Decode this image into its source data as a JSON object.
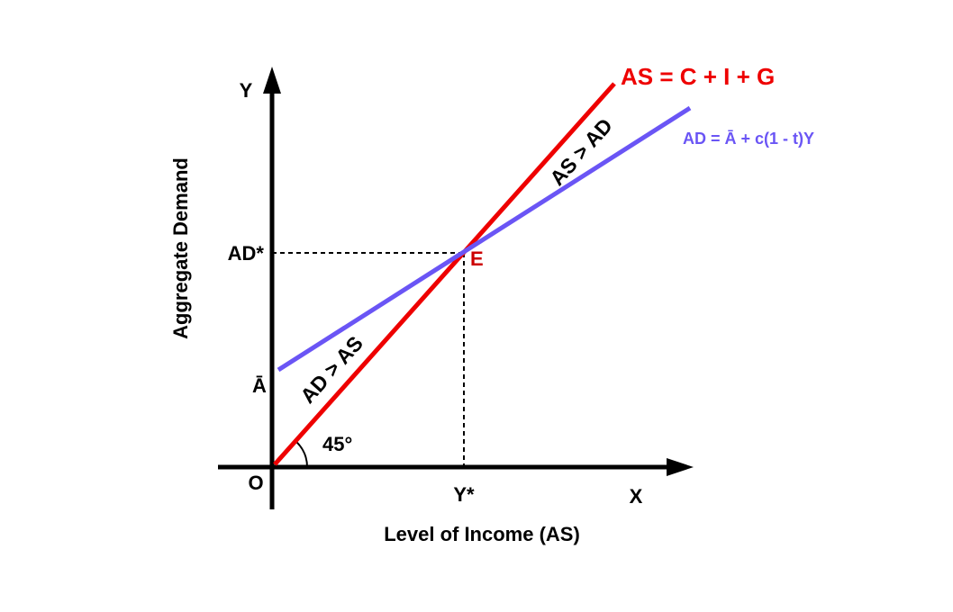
{
  "diagram": {
    "y_axis_letter": "Y",
    "x_axis_letter": "X",
    "origin_label": "O",
    "y_axis_title": "Aggregate Demand",
    "x_axis_title": "Level of Income (AS)",
    "ad_star_label": "AD*",
    "a_bar_label": "Ā",
    "y_star_label": "Y*",
    "equilibrium_label": "E",
    "angle_label": "45°",
    "as_line_label": "AS = C + I + G",
    "ad_line_label": "AD = Ā + c(1 - t)Y",
    "region_upper_label": "AS > AD",
    "region_lower_label": "AD > AS",
    "colors": {
      "as_line": "#ee0000",
      "ad_line": "#6a55f5",
      "equilibrium": "#cc0000",
      "axes": "#000000"
    }
  }
}
